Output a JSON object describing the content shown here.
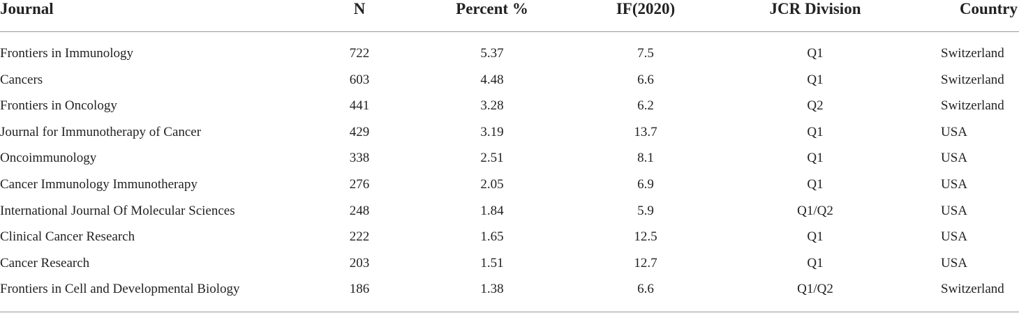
{
  "table": {
    "header": [
      "Journal",
      "N",
      "Percent %",
      "IF(2020)",
      "JCR Division",
      "Country"
    ],
    "rows": [
      [
        "Frontiers in Immunology",
        "722",
        "5.37",
        "7.5",
        "Q1",
        "Switzerland"
      ],
      [
        "Cancers",
        "603",
        "4.48",
        "6.6",
        "Q1",
        "Switzerland"
      ],
      [
        "Frontiers in Oncology",
        "441",
        "3.28",
        "6.2",
        "Q2",
        "Switzerland"
      ],
      [
        "Journal for Immunotherapy of Cancer",
        "429",
        "3.19",
        "13.7",
        "Q1",
        "USA"
      ],
      [
        "Oncoimmunology",
        "338",
        "2.51",
        "8.1",
        "Q1",
        "USA"
      ],
      [
        "Cancer Immunology Immunotherapy",
        "276",
        "2.05",
        "6.9",
        "Q1",
        "USA"
      ],
      [
        "International Journal Of Molecular Sciences",
        "248",
        "1.84",
        "5.9",
        "Q1/Q2",
        "USA"
      ],
      [
        "Clinical Cancer Research",
        "222",
        "1.65",
        "12.5",
        "Q1",
        "USA"
      ],
      [
        "Cancer Research",
        "203",
        "1.51",
        "12.7",
        "Q1",
        "USA"
      ],
      [
        "Frontiers in Cell and Developmental Biology",
        "186",
        "1.38",
        "6.6",
        "Q1/Q2",
        "Switzerland"
      ]
    ]
  }
}
